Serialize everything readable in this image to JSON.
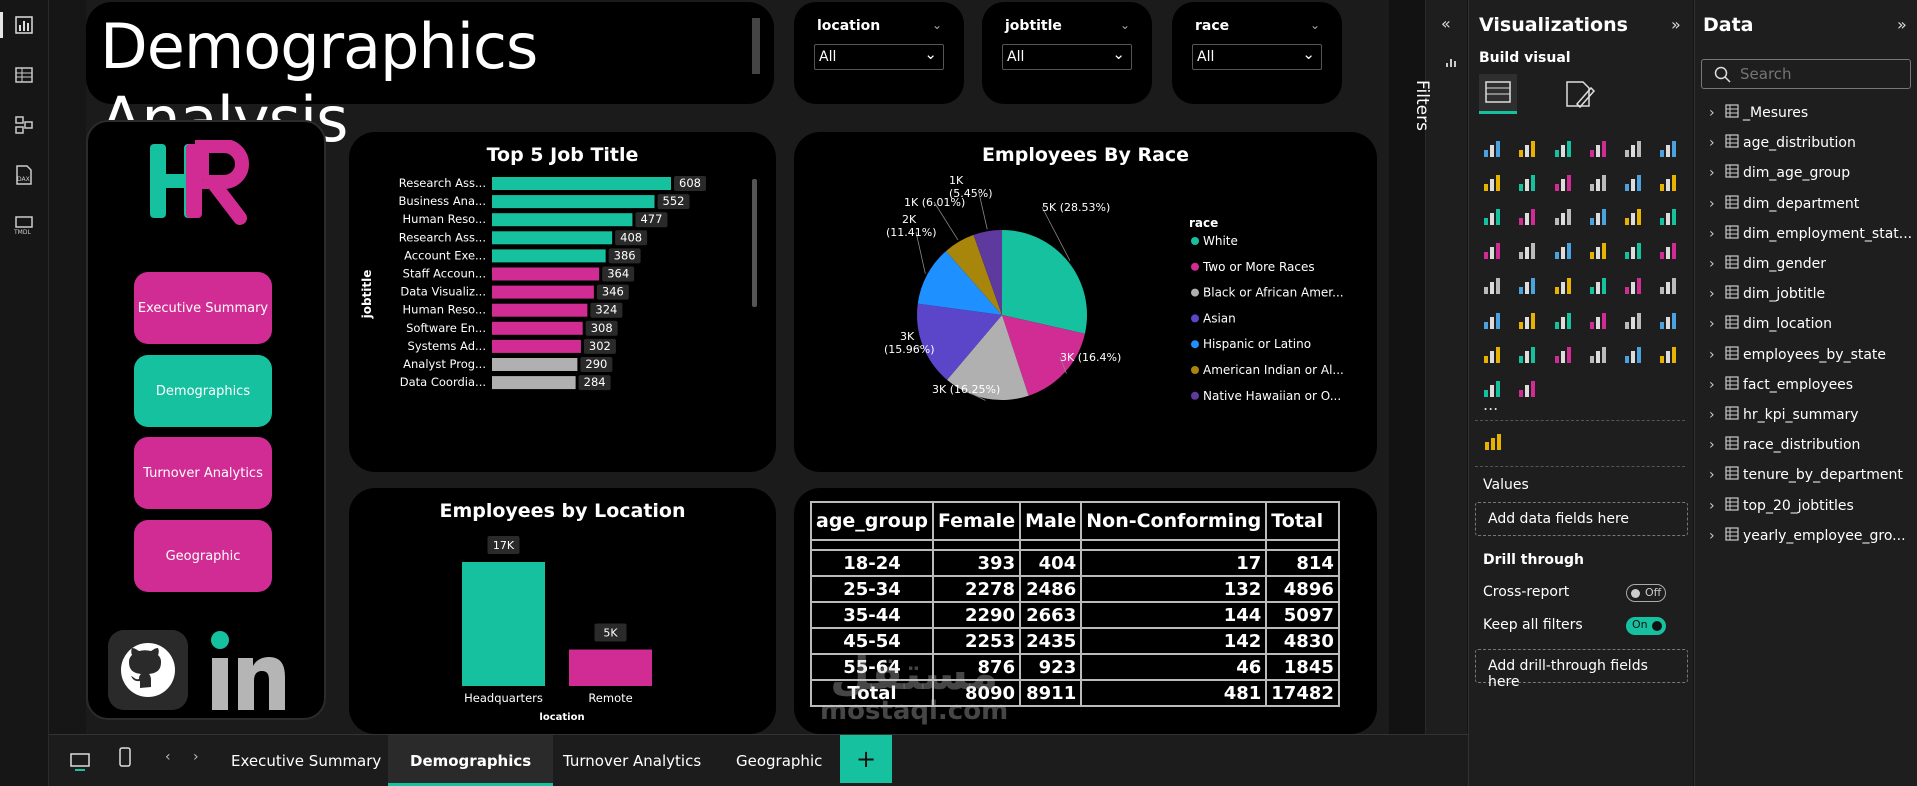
{
  "report": {
    "title": "Demographics Analysis",
    "slicers": [
      {
        "label": "location",
        "value": "All"
      },
      {
        "label": "jobtitle",
        "value": "All"
      },
      {
        "label": "race",
        "value": "All"
      }
    ],
    "nav": [
      "Executive Summary",
      "Demographics",
      "Turnover Analytics",
      "Geographic"
    ],
    "logo_letters": "HR"
  },
  "colors": {
    "teal": "#16c1a0",
    "pink": "#d12c93",
    "gray": "#b0b0b0"
  },
  "chart_data": [
    {
      "type": "bar",
      "orientation": "horizontal",
      "title": "Top 5 Job Title",
      "ylabel": "jobtitle",
      "categories": [
        "Research Ass...",
        "Business Ana...",
        "Human Reso...",
        "Research Ass...",
        "Account Exe...",
        "Staff Accoun...",
        "Data Visualiz...",
        "Human Reso...",
        "Software En...",
        "Systems Ad...",
        "Analyst Prog...",
        "Data Coordia..."
      ],
      "values": [
        608,
        552,
        477,
        408,
        386,
        364,
        346,
        324,
        308,
        302,
        290,
        284
      ],
      "color_groups": [
        "teal",
        "teal",
        "teal",
        "teal",
        "teal",
        "pink",
        "pink",
        "pink",
        "pink",
        "pink",
        "gray",
        "gray"
      ]
    },
    {
      "type": "pie",
      "title": "Employees By Race",
      "legend_title": "race",
      "legend": [
        "White",
        "Two or More Races",
        "Black or African Amer...",
        "Asian",
        "Hispanic or Latino",
        "American Indian or Al...",
        "Native Hawaiian or O..."
      ],
      "slices": [
        {
          "name": "White",
          "percent": 28.53,
          "label": "5K (28.53%)",
          "color": "#16c1a0"
        },
        {
          "name": "Two or More Races",
          "percent": 16.4,
          "label": "3K (16.4%)",
          "color": "#d12c93"
        },
        {
          "name": "Black or African American",
          "percent": 16.25,
          "label": "3K (16.25%)",
          "color": "#b0b0b0"
        },
        {
          "name": "Asian",
          "percent": 15.96,
          "label": "3K (15.96%)",
          "color": "#5b45c9"
        },
        {
          "name": "Hispanic or Latino",
          "percent": 11.41,
          "label": "2K (11.41%)",
          "color": "#1e90ff"
        },
        {
          "name": "American Indian or Alaska Native",
          "percent": 6.01,
          "label": "1K (6.01%)",
          "color": "#a8860b"
        },
        {
          "name": "Native Hawaiian or Other",
          "percent": 5.45,
          "label": "1K (5.45%)",
          "color": "#5e3a9e"
        }
      ]
    },
    {
      "type": "bar",
      "title": "Employees by Location",
      "xlabel": "location",
      "categories": [
        "Headquarters",
        "Remote"
      ],
      "values": [
        17000,
        5000
      ],
      "labels": [
        "17K",
        "5K"
      ],
      "colors": [
        "#16c1a0",
        "#d12c93"
      ]
    },
    {
      "type": "table",
      "columns": [
        "age_group",
        "Female",
        "Male",
        "Non-Conforming",
        "Total"
      ],
      "rows": [
        [
          "18-24",
          "393",
          "404",
          "17",
          "814"
        ],
        [
          "25-34",
          "2278",
          "2486",
          "132",
          "4896"
        ],
        [
          "35-44",
          "2290",
          "2663",
          "144",
          "5097"
        ],
        [
          "45-54",
          "2253",
          "2435",
          "142",
          "4830"
        ],
        [
          "55-64",
          "876",
          "923",
          "46",
          "1845"
        ],
        [
          "Total",
          "8090",
          "8911",
          "481",
          "17482"
        ]
      ]
    }
  ],
  "filters": {
    "label": "Filters"
  },
  "viz_pane": {
    "title": "Visualizations",
    "build": "Build visual",
    "more": "...",
    "values_label": "Values",
    "values_well": "Add data fields here",
    "drill_label": "Drill through",
    "cross_report": "Cross-report",
    "cross_report_state": "Off",
    "keep_filters": "Keep all filters",
    "keep_filters_state": "On",
    "drill_well": "Add drill-through fields here"
  },
  "data_pane": {
    "title": "Data",
    "search_placeholder": "Search",
    "fields": [
      "_Mesures",
      "age_distribution",
      "dim_age_group",
      "dim_department",
      "dim_employment_stat...",
      "dim_gender",
      "dim_jobtitle",
      "dim_location",
      "employees_by_state",
      "fact_employees",
      "hr_kpi_summary",
      "race_distribution",
      "tenure_by_department",
      "top_20_jobtitles",
      "yearly_employee_gro..."
    ]
  },
  "tabs": [
    "Executive Summary",
    "Demographics",
    "Turnover Analytics",
    "Geographic"
  ],
  "active_tab": "Demographics",
  "add_tab": "+",
  "watermark": {
    "arabic": "مستقل",
    "latin": "mostaql.com"
  }
}
